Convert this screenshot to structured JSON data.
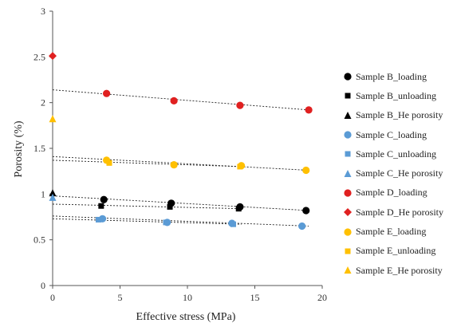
{
  "chart_data": {
    "type": "scatter",
    "xlabel": "Effective stress (MPa)",
    "ylabel": "Porosity (%)",
    "xlim": [
      0,
      20
    ],
    "ylim": [
      0,
      3
    ],
    "x_ticks": [
      "0",
      "5",
      "10",
      "15",
      "20"
    ],
    "y_ticks": [
      "0",
      "0.5",
      "1",
      "1.5",
      "2",
      "2.5",
      "3"
    ],
    "grid": false,
    "legend_position": "right",
    "series": [
      {
        "name": "Sample B_loading",
        "marker": "circle",
        "color": "#000000",
        "points": [
          [
            3.8,
            0.94
          ],
          [
            8.8,
            0.9
          ],
          [
            13.9,
            0.86
          ],
          [
            18.8,
            0.82
          ]
        ]
      },
      {
        "name": "Sample B_unloading",
        "marker": "square",
        "color": "#000000",
        "points": [
          [
            3.6,
            0.87
          ],
          [
            8.7,
            0.86
          ],
          [
            13.8,
            0.84
          ]
        ]
      },
      {
        "name": "Sample B_He porosity",
        "marker": "triangle",
        "color": "#000000",
        "points": [
          [
            0,
            1.01
          ]
        ]
      },
      {
        "name": "Sample C_loading",
        "marker": "circle",
        "color": "#5b9bd5",
        "points": [
          [
            3.7,
            0.73
          ],
          [
            8.5,
            0.69
          ],
          [
            13.3,
            0.68
          ],
          [
            18.5,
            0.65
          ]
        ]
      },
      {
        "name": "Sample C_unloading",
        "marker": "square",
        "color": "#5b9bd5",
        "points": [
          [
            3.4,
            0.72
          ],
          [
            8.4,
            0.69
          ],
          [
            13.4,
            0.67
          ]
        ]
      },
      {
        "name": "Sample C_He porosity",
        "marker": "triangle",
        "color": "#5b9bd5",
        "points": [
          [
            0,
            0.96
          ]
        ]
      },
      {
        "name": "Sample D_loading",
        "marker": "circle",
        "color": "#e02020",
        "points": [
          [
            4.0,
            2.1
          ],
          [
            9.0,
            2.02
          ],
          [
            13.9,
            1.97
          ],
          [
            19.0,
            1.92
          ]
        ]
      },
      {
        "name": "Sample D_He porosity",
        "marker": "diamond",
        "color": "#e02020",
        "points": [
          [
            0,
            2.51
          ]
        ]
      },
      {
        "name": "Sample E_loading",
        "marker": "circle",
        "color": "#ffc000",
        "points": [
          [
            4.0,
            1.37
          ],
          [
            9.0,
            1.32
          ],
          [
            14.0,
            1.31
          ],
          [
            18.8,
            1.26
          ]
        ]
      },
      {
        "name": "Sample E_unloading",
        "marker": "square",
        "color": "#ffc000",
        "points": [
          [
            4.2,
            1.34
          ],
          [
            9.0,
            1.32
          ],
          [
            13.9,
            1.3
          ]
        ]
      },
      {
        "name": "Sample E_He porosity",
        "marker": "triangle",
        "color": "#ffc000",
        "points": [
          [
            0,
            1.82
          ]
        ]
      }
    ],
    "trendlines": [
      {
        "color": "#000000",
        "from": [
          0,
          0.98
        ],
        "to": [
          19,
          0.82
        ]
      },
      {
        "color": "#000000",
        "from": [
          0,
          0.89
        ],
        "to": [
          14,
          0.84
        ]
      },
      {
        "color": "#5b9bd5",
        "from": [
          0,
          0.76
        ],
        "to": [
          19,
          0.65
        ]
      },
      {
        "color": "#5b9bd5",
        "from": [
          0,
          0.73
        ],
        "to": [
          14,
          0.67
        ]
      },
      {
        "color": "#e02020",
        "from": [
          0,
          2.14
        ],
        "to": [
          19,
          1.92
        ]
      },
      {
        "color": "#ffc000",
        "from": [
          0,
          1.41
        ],
        "to": [
          19,
          1.26
        ]
      },
      {
        "color": "#ffc000",
        "from": [
          0,
          1.37
        ],
        "to": [
          14,
          1.3
        ]
      }
    ]
  },
  "legend": [
    {
      "label": "Sample B_loading",
      "marker": "circle",
      "color": "#000000"
    },
    {
      "label": "Sample B_unloading",
      "marker": "square",
      "color": "#000000"
    },
    {
      "label": "Sample B_He porosity",
      "marker": "triangle",
      "color": "#000000"
    },
    {
      "label": "Sample C_loading",
      "marker": "circle",
      "color": "#5b9bd5"
    },
    {
      "label": "Sample C_unloading",
      "marker": "square",
      "color": "#5b9bd5"
    },
    {
      "label": "Sample C_He porosity",
      "marker": "triangle",
      "color": "#5b9bd5"
    },
    {
      "label": "Sample D_loading",
      "marker": "circle",
      "color": "#e02020"
    },
    {
      "label": "Sample D_He porosity",
      "marker": "diamond",
      "color": "#e02020"
    },
    {
      "label": "Sample E_loading",
      "marker": "circle",
      "color": "#ffc000"
    },
    {
      "label": "Sample E_unloading",
      "marker": "square",
      "color": "#ffc000"
    },
    {
      "label": "Sample E_He porosity",
      "marker": "triangle",
      "color": "#ffc000"
    }
  ]
}
